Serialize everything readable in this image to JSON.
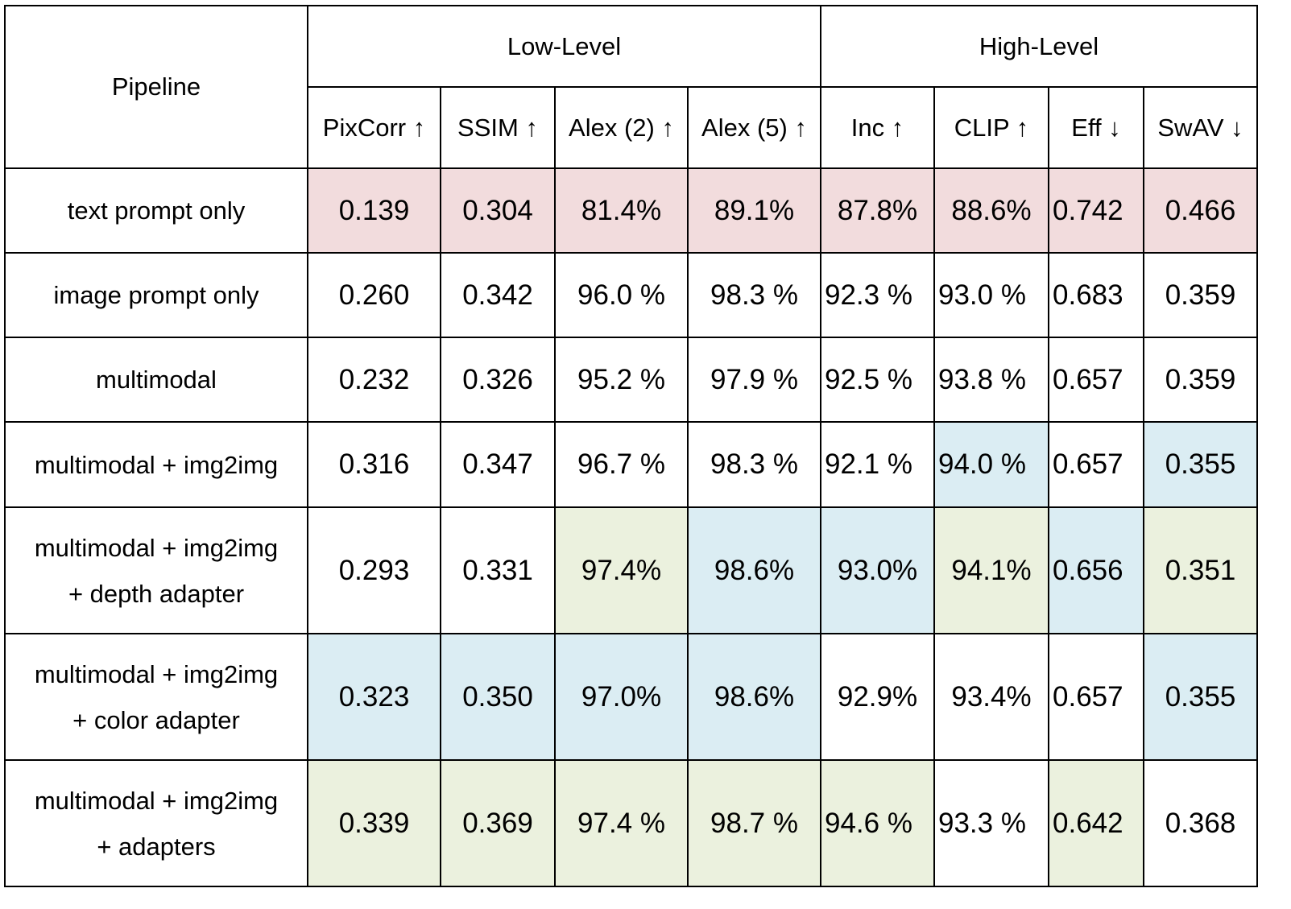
{
  "header": {
    "pipeline": "Pipeline",
    "low_level": "Low-Level",
    "high_level": "High-Level",
    "metrics": [
      "PixCorr ↑",
      "SSIM ↑",
      "Alex (2) ↑",
      "Alex (5) ↑",
      "Inc ↑",
      "CLIP ↑",
      "Eff ↓",
      "SwAV ↓"
    ]
  },
  "colors": {
    "pink": "#f2dcdd",
    "blue": "#dbedf3",
    "green": "#ebf1de"
  },
  "rows": [
    {
      "pipeline": [
        "text prompt only"
      ],
      "values": [
        "0.139",
        "0.304",
        "81.4%",
        "89.1%",
        "87.8%",
        "88.6%",
        "0.742",
        "0.466"
      ],
      "fills": [
        "pink",
        "pink",
        "pink",
        "pink",
        "pink",
        "pink",
        "pink",
        "pink"
      ],
      "bold": [
        false,
        false,
        false,
        false,
        false,
        false,
        false,
        false
      ]
    },
    {
      "pipeline": [
        "image prompt only"
      ],
      "values": [
        "0.260",
        "0.342",
        "96.0 %",
        "98.3 %",
        "92.3 %",
        "93.0 %",
        "0.683",
        "0.359"
      ],
      "fills": [
        "none",
        "none",
        "none",
        "none",
        "none",
        "none",
        "none",
        "none"
      ],
      "bold": [
        false,
        false,
        false,
        false,
        false,
        false,
        false,
        false
      ]
    },
    {
      "pipeline": [
        "multimodal"
      ],
      "values": [
        "0.232",
        "0.326",
        "95.2 %",
        "97.9 %",
        "92.5 %",
        "93.8 %",
        "0.657",
        "0.359"
      ],
      "fills": [
        "none",
        "none",
        "none",
        "none",
        "none",
        "none",
        "none",
        "none"
      ],
      "bold": [
        false,
        false,
        false,
        false,
        false,
        false,
        false,
        false
      ]
    },
    {
      "pipeline": [
        "multimodal + img2img"
      ],
      "values": [
        "0.316",
        "0.347",
        "96.7 %",
        "98.3 %",
        "92.1 %",
        "94.0 %",
        "0.657",
        "0.355"
      ],
      "fills": [
        "none",
        "none",
        "none",
        "none",
        "none",
        "blue",
        "none",
        "blue"
      ],
      "bold": [
        false,
        false,
        false,
        false,
        false,
        false,
        false,
        false
      ]
    },
    {
      "pipeline": [
        "multimodal + img2img",
        "+ depth adapter"
      ],
      "values": [
        "0.293",
        "0.331",
        "97.4%",
        "98.6%",
        "93.0%",
        "94.1%",
        "0.656",
        "0.351"
      ],
      "fills": [
        "none",
        "none",
        "green",
        "blue",
        "blue",
        "green",
        "blue",
        "green"
      ],
      "bold": [
        false,
        false,
        true,
        false,
        false,
        true,
        false,
        true
      ]
    },
    {
      "pipeline": [
        "multimodal + img2img",
        "+ color adapter"
      ],
      "values": [
        "0.323",
        "0.350",
        "97.0%",
        "98.6%",
        "92.9%",
        "93.4%",
        "0.657",
        "0.355"
      ],
      "fills": [
        "blue",
        "blue",
        "blue",
        "blue",
        "none",
        "none",
        "none",
        "blue"
      ],
      "bold": [
        false,
        false,
        false,
        false,
        false,
        false,
        false,
        false
      ]
    },
    {
      "pipeline": [
        "multimodal + img2img",
        "+ adapters"
      ],
      "values": [
        "0.339",
        "0.369",
        "97.4 %",
        "98.7 %",
        "94.6 %",
        "93.3 %",
        "0.642",
        "0.368"
      ],
      "fills": [
        "green",
        "green",
        "green",
        "green",
        "green",
        "none",
        "green",
        "none"
      ],
      "bold": [
        true,
        true,
        true,
        true,
        true,
        false,
        true,
        false
      ]
    }
  ]
}
